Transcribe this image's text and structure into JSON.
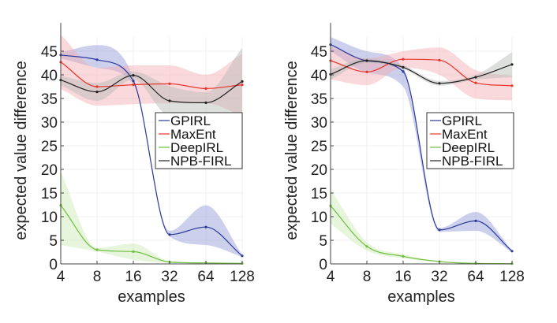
{
  "chart_data": [
    {
      "type": "line",
      "title": "",
      "xlabel": "examples",
      "ylabel": "expected value difference",
      "x": [
        4,
        8,
        16,
        32,
        64,
        128
      ],
      "x_scale": "log2",
      "x_ticks": [
        "4",
        "8",
        "16",
        "32",
        "64",
        "128"
      ],
      "y_ticks": [
        "0",
        "5",
        "10",
        "15",
        "20",
        "25",
        "30",
        "35",
        "40",
        "45"
      ],
      "ylim": [
        0,
        48
      ],
      "grid": true,
      "legend_position": "center-right",
      "series": [
        {
          "name": "GPIRL",
          "color": "#2b3a9a",
          "band_color": "#8e96d4",
          "values": [
            44.2,
            43.2,
            38.7,
            6.2,
            7.8,
            1.7
          ],
          "lower": [
            43.5,
            41.5,
            38.0,
            5.8,
            4.0,
            1.5
          ],
          "upper": [
            44.8,
            46.3,
            39.5,
            7.0,
            12.4,
            2.0
          ]
        },
        {
          "name": "MaxEnt",
          "color": "#e8352b",
          "band_color": "#f5aab2",
          "values": [
            42.7,
            37.5,
            37.9,
            38.1,
            37.1,
            37.9
          ],
          "lower": [
            37.0,
            33.5,
            33.8,
            34.0,
            34.0,
            31.3
          ],
          "upper": [
            48.5,
            41.5,
            42.0,
            42.0,
            40.0,
            44.5
          ]
        },
        {
          "name": "DeepIRL",
          "color": "#6fbf3f",
          "band_color": "#c7e8b0",
          "values": [
            12.4,
            3.0,
            2.6,
            0.4,
            0.2,
            0.1
          ],
          "lower": [
            4.0,
            2.6,
            0.9,
            0.2,
            0.1,
            0.05
          ],
          "upper": [
            19.5,
            3.4,
            4.3,
            0.6,
            0.3,
            0.2
          ]
        },
        {
          "name": "NPB-FIRL",
          "color": "#222222",
          "band_color": "#b3b8b4",
          "values": [
            38.9,
            36.4,
            39.9,
            34.5,
            34.1,
            38.6
          ],
          "lower": [
            37.8,
            34.5,
            39.0,
            31.4,
            31.8,
            31.5
          ],
          "upper": [
            39.8,
            38.3,
            40.7,
            37.6,
            36.3,
            45.7
          ]
        }
      ]
    },
    {
      "type": "line",
      "title": "",
      "xlabel": "examples",
      "ylabel": "expected value difference",
      "x": [
        4,
        8,
        16,
        32,
        64,
        128
      ],
      "x_scale": "log2",
      "x_ticks": [
        "4",
        "8",
        "16",
        "32",
        "64",
        "128"
      ],
      "y_ticks": [
        "0",
        "5",
        "10",
        "15",
        "20",
        "25",
        "30",
        "35",
        "40",
        "45"
      ],
      "ylim": [
        0,
        48
      ],
      "grid": true,
      "legend_position": "center-right",
      "series": [
        {
          "name": "GPIRL",
          "color": "#2b3a9a",
          "band_color": "#8e96d4",
          "values": [
            46.4,
            43.0,
            40.7,
            7.2,
            9.1,
            2.7
          ],
          "lower": [
            45.0,
            40.5,
            37.5,
            6.8,
            7.0,
            2.5
          ],
          "upper": [
            48.0,
            45.0,
            41.5,
            7.6,
            11.0,
            2.9
          ]
        },
        {
          "name": "MaxEnt",
          "color": "#e8352b",
          "band_color": "#f5aab2",
          "values": [
            43.0,
            40.6,
            43.3,
            43.1,
            38.3,
            37.7
          ],
          "lower": [
            39.0,
            37.8,
            41.5,
            40.0,
            35.0,
            34.6
          ],
          "upper": [
            46.0,
            43.5,
            45.0,
            45.8,
            41.0,
            39.8
          ]
        },
        {
          "name": "DeepIRL",
          "color": "#6fbf3f",
          "band_color": "#c7e8b0",
          "values": [
            12.3,
            3.7,
            1.6,
            0.5,
            0.1,
            0.05
          ],
          "lower": [
            8.5,
            2.8,
            1.2,
            0.4,
            0.05,
            0.02
          ],
          "upper": [
            15.7,
            4.6,
            2.0,
            0.6,
            0.2,
            0.1
          ]
        },
        {
          "name": "NPB-FIRL",
          "color": "#222222",
          "band_color": "#b3b8b4",
          "values": [
            40.1,
            43.0,
            41.6,
            38.2,
            39.5,
            42.2
          ],
          "lower": [
            39.0,
            42.5,
            41.2,
            37.7,
            39.0,
            39.5
          ],
          "upper": [
            41.2,
            43.5,
            42.0,
            38.7,
            40.0,
            44.8
          ]
        }
      ]
    }
  ]
}
